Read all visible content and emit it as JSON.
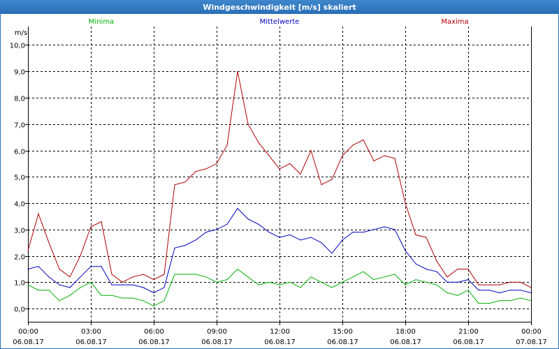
{
  "window": {
    "title": "Windgeschwindigkeit [m/s] skaliert"
  },
  "chart_data": {
    "type": "line",
    "title": "Windgeschwindigkeit [m/s] skaliert",
    "ylabel": "m/s",
    "xlabel": "",
    "ylim": [
      -0.5,
      10.7
    ],
    "xlim": [
      0,
      24
    ],
    "grid": true,
    "y_ticks": [
      0,
      1,
      2,
      3,
      4,
      5,
      6,
      7,
      8,
      9,
      10
    ],
    "y_tick_labels": [
      "0,0",
      "1,0",
      "2,0",
      "3,0",
      "4,0",
      "5,0",
      "6,0",
      "7,0",
      "8,0",
      "9,0",
      "10,0"
    ],
    "x_ticks": [
      {
        "pos": 0,
        "time": "00:00",
        "date": "06.08.17"
      },
      {
        "pos": 3,
        "time": "03:00",
        "date": "06.08.17"
      },
      {
        "pos": 6,
        "time": "06:00",
        "date": "06.08.17"
      },
      {
        "pos": 9,
        "time": "09:00",
        "date": "06.08.17"
      },
      {
        "pos": 12,
        "time": "12:00",
        "date": "06.08.17"
      },
      {
        "pos": 15,
        "time": "15:00",
        "date": "06.08.17"
      },
      {
        "pos": 18,
        "time": "18:00",
        "date": "06.08.17"
      },
      {
        "pos": 21,
        "time": "21:00",
        "date": "06.08.17"
      },
      {
        "pos": 24,
        "time": "00:00",
        "date": "07.08.17"
      }
    ],
    "x": [
      0,
      0.5,
      1,
      1.5,
      2,
      2.5,
      3,
      3.5,
      4,
      4.5,
      5,
      5.5,
      6,
      6.5,
      7,
      7.5,
      8,
      8.5,
      9,
      9.5,
      10,
      10.5,
      11,
      11.5,
      12,
      12.5,
      13,
      13.5,
      14,
      14.5,
      15,
      15.5,
      16,
      16.5,
      17,
      17.5,
      18,
      18.5,
      19,
      19.5,
      20,
      20.5,
      21,
      21.5,
      22,
      22.5,
      23,
      23.5,
      24
    ],
    "series": [
      {
        "name": "Minima",
        "color": "#00b000",
        "values": [
          0.9,
          0.7,
          0.7,
          0.3,
          0.5,
          0.8,
          1.0,
          0.5,
          0.5,
          0.4,
          0.4,
          0.3,
          0.1,
          0.3,
          1.3,
          1.3,
          1.3,
          1.2,
          1.0,
          1.1,
          1.5,
          1.2,
          0.9,
          1.0,
          0.9,
          1.0,
          0.8,
          1.2,
          1.0,
          0.8,
          1.0,
          1.2,
          1.4,
          1.1,
          1.2,
          1.3,
          0.9,
          1.1,
          1.0,
          0.9,
          0.6,
          0.5,
          0.7,
          0.2,
          0.2,
          0.3,
          0.3,
          0.4,
          0.3
        ]
      },
      {
        "name": "Mittelwerte",
        "color": "#0000c0",
        "values": [
          1.5,
          1.6,
          1.2,
          0.9,
          0.8,
          1.2,
          1.6,
          1.6,
          0.9,
          0.9,
          0.9,
          0.8,
          0.6,
          0.8,
          2.3,
          2.4,
          2.6,
          2.9,
          3.0,
          3.2,
          3.8,
          3.4,
          3.2,
          2.9,
          2.7,
          2.8,
          2.6,
          2.7,
          2.5,
          2.1,
          2.6,
          2.9,
          2.9,
          3.0,
          3.1,
          3.0,
          2.2,
          1.7,
          1.5,
          1.4,
          1.0,
          1.0,
          1.1,
          0.7,
          0.7,
          0.6,
          0.7,
          0.7,
          0.6
        ]
      },
      {
        "name": "Maxima",
        "color": "#b00000",
        "values": [
          2.2,
          3.6,
          2.5,
          1.5,
          1.2,
          2.0,
          3.1,
          3.3,
          1.3,
          1.0,
          1.2,
          1.3,
          1.1,
          1.3,
          4.7,
          4.8,
          5.2,
          5.3,
          5.5,
          6.2,
          9.0,
          7.0,
          6.3,
          5.8,
          5.3,
          5.5,
          5.1,
          6.0,
          4.7,
          4.9,
          5.8,
          6.2,
          6.4,
          5.6,
          5.8,
          5.7,
          4.0,
          2.8,
          2.7,
          1.8,
          1.2,
          1.5,
          1.5,
          0.9,
          0.9,
          0.9,
          1.0,
          1.0,
          0.8
        ]
      }
    ]
  }
}
